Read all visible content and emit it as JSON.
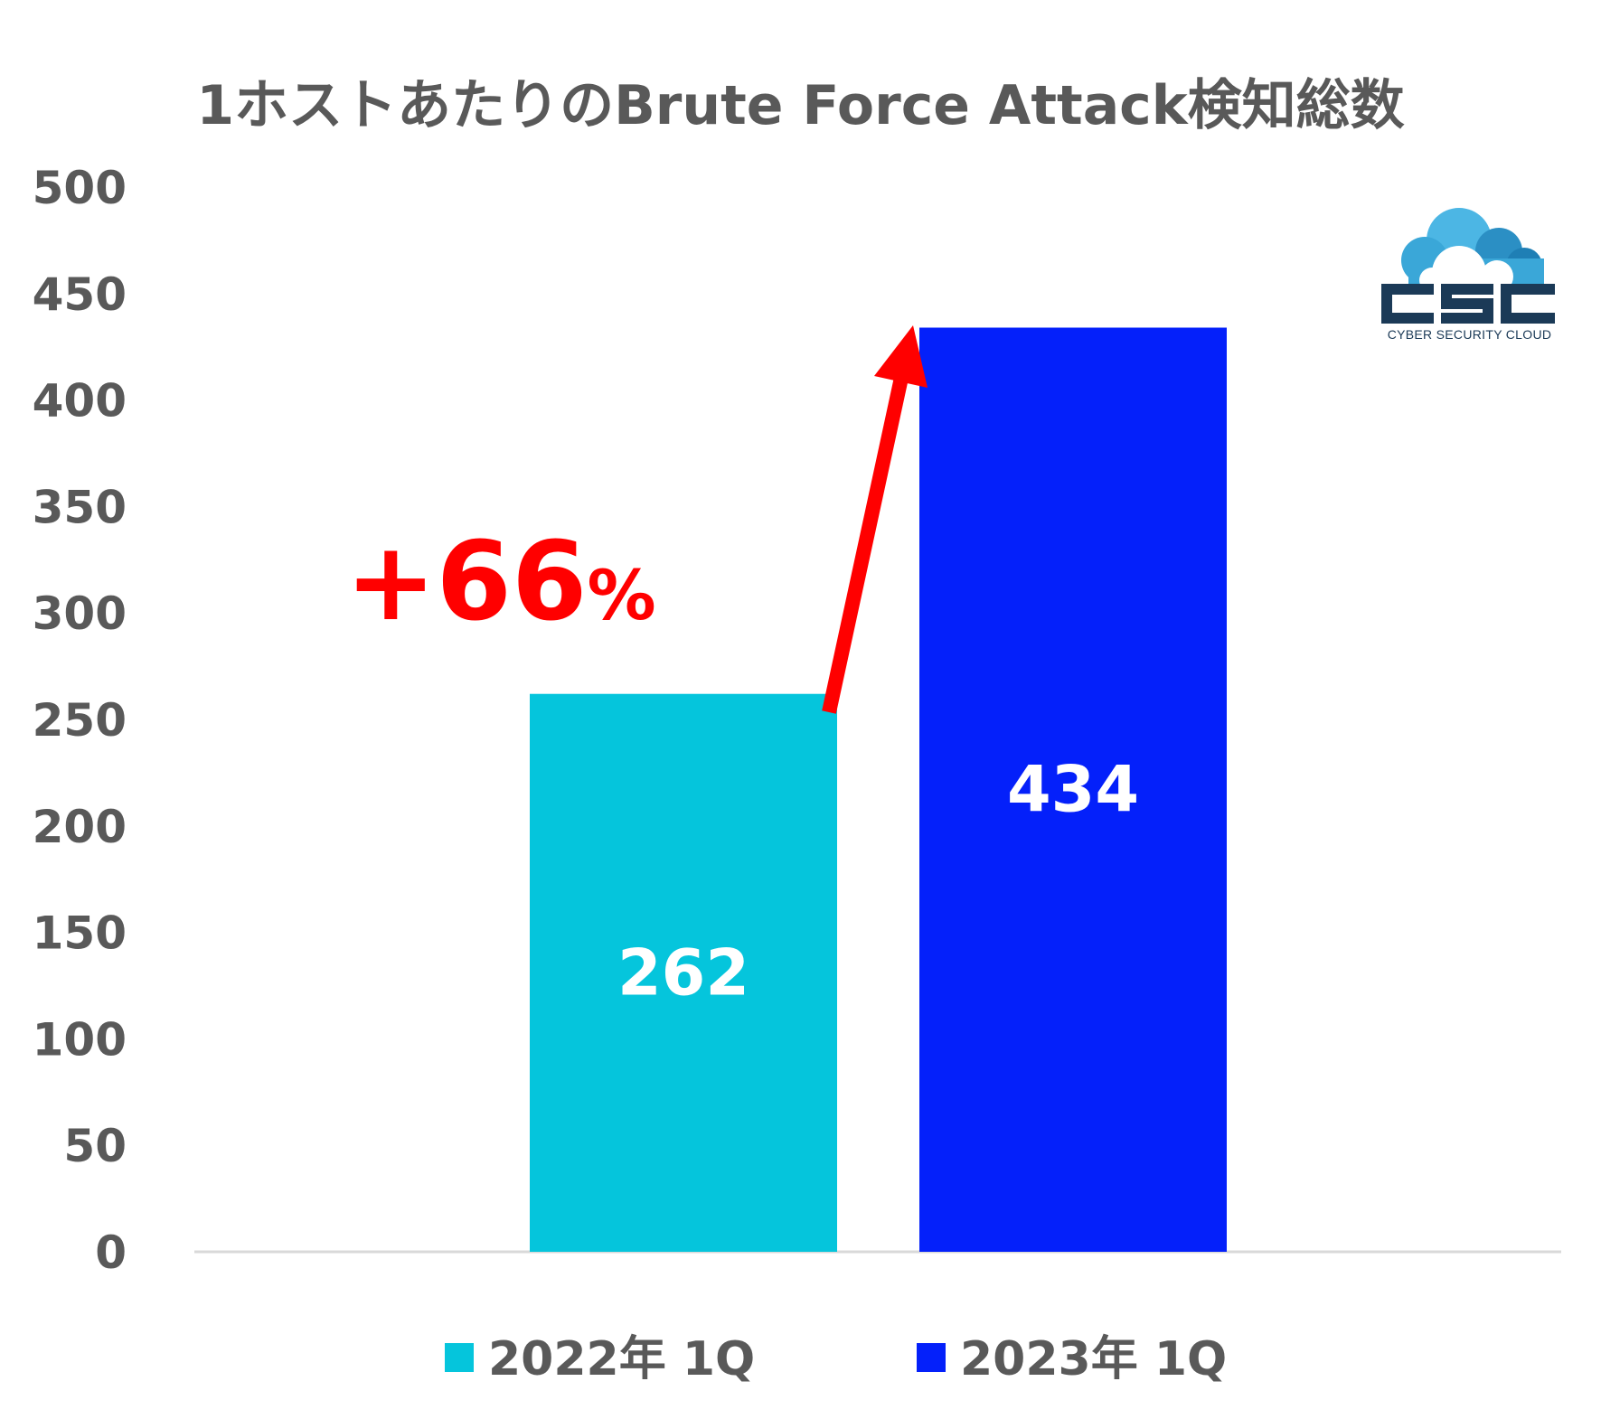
{
  "chart_data": {
    "type": "bar",
    "title": "1ホストあたりのBrute Force Attack検知総数",
    "categories": [
      "2022年 1Q",
      "2023年 1Q"
    ],
    "values": [
      262,
      434
    ],
    "colors": [
      "#05C5DC",
      "#0420FA"
    ],
    "ylim": [
      0,
      500
    ],
    "yticks": [
      0,
      50,
      100,
      150,
      200,
      250,
      300,
      350,
      400,
      450,
      500
    ],
    "grid": false,
    "legend": {
      "position": "bottom",
      "entries": [
        "2022年 1Q",
        "2023年 1Q"
      ]
    },
    "annotation": {
      "text": "+66",
      "suffix": "%",
      "color": "#ff0000"
    }
  },
  "logo": {
    "text": "CSC",
    "subtitle": "CYBER SECURITY CLOUD",
    "color": "#1b3a57",
    "cloud_color": "#3aa7d8"
  }
}
